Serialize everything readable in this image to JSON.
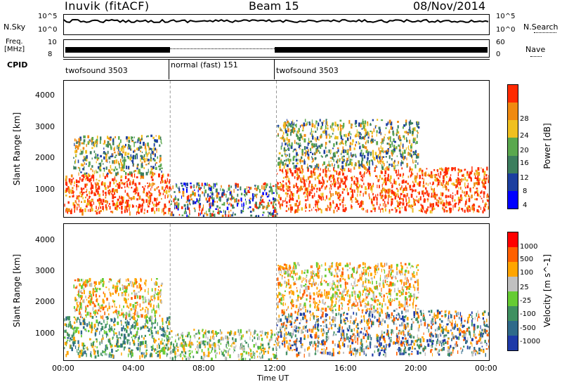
{
  "header": {
    "station": "Inuvik (fitACF)",
    "beam": "Beam 15",
    "date": "08/Nov/2014"
  },
  "left_labels": {
    "nsky": "N.Sky",
    "freq_line1": "Freq.",
    "freq_line2": "[MHz]",
    "cpid": "CPID"
  },
  "right_labels": {
    "nsearch": "N.Search",
    "nave": "Nave"
  },
  "strip_ticks": {
    "noise_left": [
      "10^5",
      "10^0"
    ],
    "noise_right": [
      "10^5",
      "10^0"
    ],
    "freq_left": [
      "10",
      "8"
    ],
    "nave_right": [
      "60",
      "0"
    ]
  },
  "cpid_segments": [
    {
      "label": "twofsound 3503",
      "start_hour": 0,
      "end_hour": 6
    },
    {
      "label": "normal (fast) 151",
      "start_hour": 6,
      "end_hour": 12
    },
    {
      "label": "twofsound 3503",
      "start_hour": 12,
      "end_hour": 24
    }
  ],
  "x_axis": {
    "label": "Time UT",
    "ticks": [
      "00:00",
      "04:00",
      "08:00",
      "12:00",
      "16:00",
      "20:00",
      "00:00"
    ]
  },
  "colors": {
    "power_scale": [
      "#0000ff",
      "#1c3fa0",
      "#3c7e5e",
      "#5aa84e",
      "#f0c020",
      "#f08a10",
      "#ff2a00"
    ],
    "velocity_scale": [
      "#1e3aa8",
      "#2f6a8a",
      "#3f9060",
      "#66cc33",
      "#c0c0c0",
      "#ffa500",
      "#ff6000",
      "#ff0000"
    ]
  },
  "chart_data": [
    {
      "type": "heatmap",
      "ylabel": "Slant Range [km]",
      "xlabel": "Time UT",
      "xlim": [
        0,
        24
      ],
      "ylim": [
        200,
        4500
      ],
      "y_ticks": [
        "1000",
        "2000",
        "3000",
        "4000"
      ],
      "colorbar": {
        "label": "Power [dB]",
        "ticks": [
          "4",
          "8",
          "12",
          "16",
          "20",
          "24",
          "28"
        ]
      },
      "regions": [
        {
          "t0": 0.0,
          "t1": 6.0,
          "r0": 350,
          "r1": 1600,
          "class": "high"
        },
        {
          "t0": 0.5,
          "t1": 5.5,
          "r0": 1600,
          "r1": 2800,
          "class": "mid"
        },
        {
          "t0": 6.0,
          "t1": 12.0,
          "r0": 250,
          "r1": 1300,
          "class": "low"
        },
        {
          "t0": 12.0,
          "t1": 24.0,
          "r0": 400,
          "r1": 1800,
          "class": "high"
        },
        {
          "t0": 12.0,
          "t1": 20.0,
          "r0": 1800,
          "r1": 3300,
          "class": "mid"
        }
      ]
    },
    {
      "type": "heatmap",
      "ylabel": "Slant Range [km]",
      "xlabel": "Time UT",
      "xlim": [
        0,
        24
      ],
      "ylim": [
        200,
        4500
      ],
      "y_ticks": [
        "1000",
        "2000",
        "3000",
        "4000"
      ],
      "colorbar": {
        "label": "Velocity [m s^-1]",
        "ticks": [
          "1000",
          "500",
          "100",
          "25",
          "-25",
          "-100",
          "-500",
          "-1000"
        ]
      },
      "regions": [
        {
          "t0": 0.0,
          "t1": 6.0,
          "r0": 350,
          "r1": 1600,
          "class": "toward"
        },
        {
          "t0": 0.5,
          "t1": 5.5,
          "r0": 1600,
          "r1": 2800,
          "class": "away"
        },
        {
          "t0": 6.0,
          "t1": 12.0,
          "r0": 250,
          "r1": 1200,
          "class": "slow"
        },
        {
          "t0": 12.0,
          "t1": 24.0,
          "r0": 400,
          "r1": 1800,
          "class": "mixed"
        },
        {
          "t0": 12.0,
          "t1": 20.0,
          "r0": 1800,
          "r1": 3300,
          "class": "away"
        }
      ]
    }
  ]
}
